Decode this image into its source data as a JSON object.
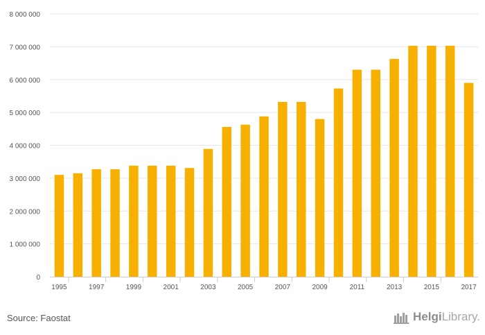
{
  "chart_data": {
    "type": "bar",
    "categories": [
      "1995",
      "1996",
      "1997",
      "1998",
      "1999",
      "2000",
      "2001",
      "2002",
      "2003",
      "2004",
      "2005",
      "2006",
      "2007",
      "2008",
      "2009",
      "2010",
      "2011",
      "2012",
      "2013",
      "2014",
      "2015",
      "2016",
      "2017"
    ],
    "x_tick_labels": [
      "1995",
      "1997",
      "1999",
      "2001",
      "2003",
      "2005",
      "2007",
      "2009",
      "2011",
      "2013",
      "2015",
      "2017"
    ],
    "values": [
      3100000,
      3150000,
      3270000,
      3270000,
      3380000,
      3380000,
      3380000,
      3310000,
      3890000,
      4560000,
      4630000,
      4880000,
      5320000,
      5320000,
      4800000,
      5730000,
      6300000,
      6300000,
      6630000,
      7030000,
      7030000,
      7030000,
      5900000
    ],
    "ylim": [
      0,
      8000000
    ],
    "y_ticks": [
      0,
      1000000,
      2000000,
      3000000,
      4000000,
      5000000,
      6000000,
      7000000,
      8000000
    ],
    "y_tick_labels": [
      "0",
      "1 000 000",
      "2 000 000",
      "3 000 000",
      "4 000 000",
      "5 000 000",
      "6 000 000",
      "7 000 000",
      "8 000 000"
    ],
    "title": "",
    "xlabel": "",
    "ylabel": "",
    "grid": true,
    "bar_color": "#f7b000"
  },
  "footer": {
    "source": "Source: Faostat",
    "brand_helgi": "Helgi",
    "brand_library": "Library."
  },
  "icons": {
    "brand_logo": "helgi-library-logo-icon"
  }
}
